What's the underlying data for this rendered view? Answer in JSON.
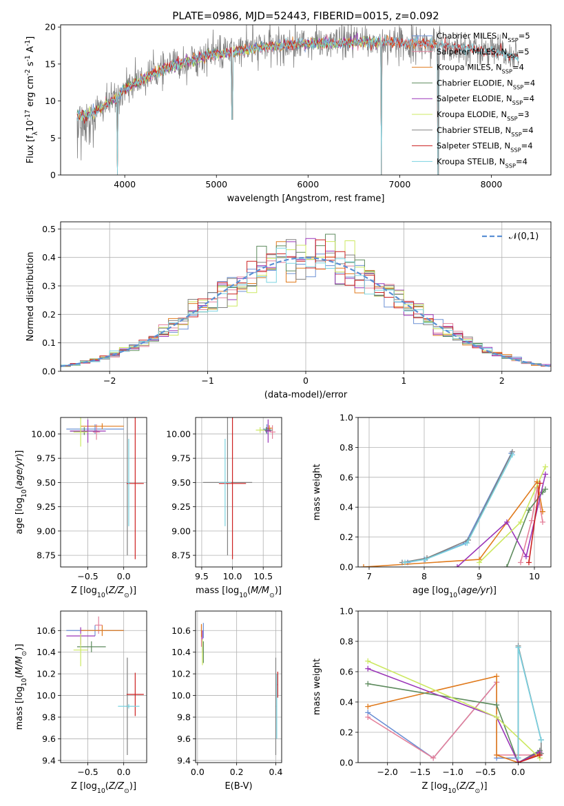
{
  "colors": {
    "chabrier_miles": "#6a8fd4",
    "salpeter_miles": "#e4809a",
    "kroupa_miles": "#e07a1c",
    "chabrier_elodie": "#5c8a5c",
    "salpeter_elodie": "#9a35b8",
    "kroupa_elodie": "#cce860",
    "chabrier_stelib": "#808080",
    "salpeter_stelib": "#cc1f1f",
    "kroupa_stelib": "#7ad3e0"
  },
  "chart_data": [
    {
      "type": "line",
      "title": "PLATE=0986, MJD=52443, FIBERID=0015, z=0.092",
      "xlabel": "wavelength [Angstrom, rest frame]",
      "ylabel": "Flux [f$_\\lambda$10$^{-17}$ erg cm$^{-2}$ s$^{-1}$ A$^{-1}$]",
      "xlim": [
        3300,
        8650
      ],
      "ylim": [
        0,
        20.3
      ],
      "xticks": [
        "4000",
        "5000",
        "6000",
        "7000",
        "8000"
      ],
      "yticks": [
        "0",
        "5",
        "10",
        "15",
        "20"
      ],
      "grid": false,
      "legend_position": "top-right",
      "continuum": {
        "x": [
          3480,
          3600,
          3700,
          3800,
          3900,
          4000,
          4100,
          4300,
          4500,
          4700,
          4900,
          5100,
          5300,
          5500,
          5700,
          5900,
          6100,
          6300,
          6500,
          6700,
          6900,
          7100,
          7300,
          7500,
          7700,
          7900,
          8100,
          8300
        ],
        "y": [
          8.0,
          8.2,
          8.6,
          9.5,
          10.4,
          11.6,
          12.3,
          13.6,
          14.6,
          15.4,
          16.2,
          16.5,
          16.9,
          17.3,
          17.5,
          17.7,
          17.8,
          17.8,
          17.9,
          17.9,
          18.0,
          17.8,
          17.7,
          17.5,
          17.2,
          16.8,
          16.5,
          15.8
        ]
      },
      "spectrum_dips": [
        {
          "x": 3920,
          "y": 0
        },
        {
          "x": 5175,
          "y": 7.5
        },
        {
          "x": 6800,
          "y": 0
        },
        {
          "x": 7420,
          "y": 0
        }
      ],
      "series": [
        {
          "name": "Chabrier MILES, N$_{SSP}$=5",
          "color_key": "chabrier_miles",
          "xmax": 7440
        },
        {
          "name": "Salpeter MILES, N$_{SSP}$=5",
          "color_key": "salpeter_miles",
          "xmax": 7440
        },
        {
          "name": "Kroupa MILES, N$_{SSP}$=4",
          "color_key": "kroupa_miles",
          "xmax": 7440
        },
        {
          "name": "Chabrier ELODIE, N$_{SSP}$=4",
          "color_key": "chabrier_elodie",
          "xmax": 6800
        },
        {
          "name": "Salpeter ELODIE, N$_{SSP}$=4",
          "color_key": "salpeter_elodie",
          "xmax": 6800
        },
        {
          "name": "Kroupa ELODIE, N$_{SSP}$=3",
          "color_key": "kroupa_elodie",
          "xmax": 6800
        },
        {
          "name": "Chabrier STELIB, N$_{SSP}$=4",
          "color_key": "chabrier_stelib",
          "xmax": 8300
        },
        {
          "name": "Salpeter STELIB, N$_{SSP}$=4",
          "color_key": "salpeter_stelib",
          "xmax": 8300
        },
        {
          "name": "Kroupa STELIB, N$_{SSP}$=4",
          "color_key": "kroupa_stelib",
          "xmax": 8300
        }
      ]
    },
    {
      "type": "histogram",
      "xlabel": "(data-model)/error",
      "ylabel": "Normed distribution",
      "xlim": [
        -2.5,
        2.5
      ],
      "ylim": [
        0,
        0.525
      ],
      "xticks": [
        "−2",
        "−1",
        "0",
        "1",
        "2"
      ],
      "yticks": [
        "0.0",
        "0.1",
        "0.2",
        "0.3",
        "0.4",
        "0.5"
      ],
      "grid": true,
      "bin_width": 0.1,
      "reference_curve": {
        "name": "$\\mathcal{N}(0,1)$",
        "color": "#5a8fd4",
        "style": "dashed"
      },
      "legend_position": "top-right"
    },
    {
      "type": "scatter",
      "xlabel": "Z [log$_{10}$($Z/Z_\\odot$)]",
      "ylabel": "age  [log$_{10}$($age/yr$)]",
      "xlim": [
        -0.88,
        0.32
      ],
      "ylim": [
        8.63,
        10.17
      ],
      "xticks": [
        "−0.5",
        "0.0"
      ],
      "yticks": [
        "8.75",
        "9.00",
        "9.25",
        "9.50",
        "9.75",
        "10.00"
      ],
      "grid": true,
      "points": [
        {
          "key": "chabrier_miles",
          "x": -0.4,
          "y": 10.05,
          "xerr": 0.4,
          "yerr": 0.05
        },
        {
          "key": "salpeter_miles",
          "x": -0.38,
          "y": 10.02,
          "xerr": 0.05,
          "yerr": 0.08
        },
        {
          "key": "kroupa_miles",
          "x": -0.3,
          "y": 10.08,
          "xerr": 0.3,
          "yerr": 0.03
        },
        {
          "key": "chabrier_elodie",
          "x": -0.55,
          "y": 10.03,
          "xerr": 0.2,
          "yerr": 0.04
        },
        {
          "key": "salpeter_elodie",
          "x": -0.5,
          "y": 10.03,
          "xerr": 0.25,
          "yerr": 0.12
        },
        {
          "key": "kroupa_elodie",
          "x": -0.6,
          "y": 10.02,
          "xerr": 0.1,
          "yerr": 0.15
        },
        {
          "key": "chabrier_stelib",
          "x": 0.05,
          "y": 9.5,
          "xerr": 0.0,
          "yerr": 0.75
        },
        {
          "key": "salpeter_stelib",
          "x": 0.16,
          "y": 9.49,
          "xerr": 0.12,
          "yerr": 0.78
        },
        {
          "key": "kroupa_stelib",
          "x": 0.07,
          "y": 9.5,
          "xerr": 0.02,
          "yerr": 0.45
        }
      ]
    },
    {
      "type": "scatter",
      "xlabel": "mass [log$_{10}$($M/M_\\odot$)]",
      "ylabel": "",
      "xlim": [
        9.4,
        10.8
      ],
      "ylim": [
        8.63,
        10.17
      ],
      "xticks": [
        "9.5",
        "10.0",
        "10.5"
      ],
      "yticks": [
        "8.75",
        "9.00",
        "9.25",
        "9.50",
        "9.75",
        "10.00"
      ],
      "grid": true,
      "points": [
        {
          "key": "chabrier_miles",
          "x": 10.56,
          "y": 10.05,
          "xerr": 0.06,
          "yerr": 0.05
        },
        {
          "key": "salpeter_miles",
          "x": 10.65,
          "y": 10.02,
          "xerr": 0.05,
          "yerr": 0.07
        },
        {
          "key": "kroupa_miles",
          "x": 10.6,
          "y": 10.06,
          "xerr": 0.05,
          "yerr": 0.03
        },
        {
          "key": "chabrier_elodie",
          "x": 10.55,
          "y": 10.04,
          "xerr": 0.1,
          "yerr": 0.03
        },
        {
          "key": "salpeter_elodie",
          "x": 10.58,
          "y": 10.03,
          "xerr": 0.05,
          "yerr": 0.12
        },
        {
          "key": "kroupa_elodie",
          "x": 10.45,
          "y": 10.04,
          "xerr": 0.07,
          "yerr": 0.03
        },
        {
          "key": "chabrier_stelib",
          "x": 9.92,
          "y": 9.5,
          "xerr": 0.4,
          "yerr": 0.75
        },
        {
          "key": "salpeter_stelib",
          "x": 10.0,
          "y": 9.49,
          "xerr": 0.22,
          "yerr": 0.78
        },
        {
          "key": "kroupa_stelib",
          "x": 9.88,
          "y": 9.5,
          "xerr": 0.1,
          "yerr": 0.45
        }
      ]
    },
    {
      "type": "line",
      "xlabel": "age  [log$_{10}$($age/yr$)]",
      "ylabel": "mass weight",
      "xlim": [
        6.8,
        10.3
      ],
      "ylim": [
        0,
        1
      ],
      "xticks": [
        "7",
        "8",
        "9",
        "10"
      ],
      "yticks": [
        "0.0",
        "0.2",
        "0.4",
        "0.6",
        "0.8",
        "1.0"
      ],
      "grid": true,
      "series": [
        {
          "key": "chabrier_miles",
          "x": [
            7.7,
            8.0,
            8.75,
            9.58
          ],
          "y": [
            0.03,
            0.05,
            0.16,
            0.76
          ]
        },
        {
          "key": "salpeter_miles",
          "x": [
            9.75,
            9.95,
            10.05,
            10.15
          ],
          "y": [
            0.03,
            0.31,
            0.53,
            0.3
          ]
        },
        {
          "key": "kroupa_miles",
          "x": [
            6.9,
            9.0,
            10.05,
            10.15
          ],
          "y": [
            0.0,
            0.05,
            0.57,
            0.37
          ]
        },
        {
          "key": "chabrier_elodie",
          "x": [
            9.5,
            9.9,
            10.15,
            10.2
          ],
          "y": [
            0.0,
            0.38,
            0.5,
            0.52
          ]
        },
        {
          "key": "salpeter_elodie",
          "x": [
            8.6,
            9.5,
            9.85,
            10.2
          ],
          "y": [
            0.0,
            0.3,
            0.07,
            0.62
          ]
        },
        {
          "key": "kroupa_elodie",
          "x": [
            9.0,
            9.75,
            10.2
          ],
          "y": [
            0.03,
            0.3,
            0.67
          ]
        },
        {
          "key": "chabrier_stelib",
          "x": [
            7.6,
            8.05,
            8.8,
            9.6
          ],
          "y": [
            0.03,
            0.06,
            0.18,
            0.77
          ]
        },
        {
          "key": "salpeter_stelib",
          "x": [
            9.9,
            10.1
          ],
          "y": [
            0.03,
            0.56
          ]
        },
        {
          "key": "kroupa_stelib",
          "x": [
            7.65,
            8.02,
            8.78,
            9.6
          ],
          "y": [
            0.03,
            0.05,
            0.16,
            0.75
          ]
        }
      ]
    },
    {
      "type": "scatter",
      "xlabel": "Z [log$_{10}$($Z/Z_\\odot$)]",
      "ylabel": "mass [log$_{10}$($M/M_\\odot$)]",
      "xlim": [
        -0.88,
        0.32
      ],
      "ylim": [
        9.38,
        10.78
      ],
      "xticks": [
        "−0.5",
        "0.0"
      ],
      "yticks": [
        "9.4",
        "9.6",
        "9.8",
        "10.0",
        "10.2",
        "10.4",
        "10.6"
      ],
      "grid": true,
      "points": [
        {
          "key": "chabrier_miles",
          "x": -0.4,
          "y": 10.6,
          "xerr": 0.4,
          "yerr": 0.05
        },
        {
          "key": "salpeter_miles",
          "x": -0.35,
          "y": 10.65,
          "xerr": 0.05,
          "yerr": 0.08
        },
        {
          "key": "kroupa_miles",
          "x": -0.3,
          "y": 10.6,
          "xerr": 0.3,
          "yerr": 0.05
        },
        {
          "key": "chabrier_elodie",
          "x": -0.45,
          "y": 10.45,
          "xerr": 0.2,
          "yerr": 0.05
        },
        {
          "key": "salpeter_elodie",
          "x": -0.6,
          "y": 10.55,
          "xerr": 0.2,
          "yerr": 0.08
        },
        {
          "key": "kroupa_elodie",
          "x": -0.6,
          "y": 10.42,
          "xerr": 0.1,
          "yerr": 0.15
        },
        {
          "key": "chabrier_stelib",
          "x": 0.05,
          "y": 9.9,
          "xerr": 0.02,
          "yerr": 0.45
        },
        {
          "key": "salpeter_stelib",
          "x": 0.16,
          "y": 10.01,
          "xerr": 0.12,
          "yerr": 0.2
        },
        {
          "key": "kroupa_stelib",
          "x": 0.07,
          "y": 9.9,
          "xerr": 0.15,
          "yerr": 0.02
        }
      ]
    },
    {
      "type": "scatter",
      "xlabel": "E(B-V)",
      "ylabel": "",
      "xlim": [
        -0.01,
        0.43
      ],
      "ylim": [
        9.38,
        10.78
      ],
      "xticks": [
        "0.0",
        "0.2",
        "0.4"
      ],
      "yticks": [
        "9.4",
        "9.6",
        "9.8",
        "10.0",
        "10.2",
        "10.4",
        "10.6"
      ],
      "grid": true,
      "points": [
        {
          "key": "chabrier_miles",
          "x": 0.03,
          "y": 10.6,
          "xerr": 0.002,
          "yerr": 0.07
        },
        {
          "key": "salpeter_miles",
          "x": 0.02,
          "y": 10.55,
          "xerr": 0.002,
          "yerr": 0.1
        },
        {
          "key": "kroupa_miles",
          "x": 0.02,
          "y": 10.6,
          "xerr": 0.002,
          "yerr": 0.06
        },
        {
          "key": "chabrier_elodie",
          "x": 0.03,
          "y": 10.4,
          "xerr": 0.002,
          "yerr": 0.1
        },
        {
          "key": "salpeter_elodie",
          "x": 0.025,
          "y": 10.5,
          "xerr": 0.002,
          "yerr": 0.1
        },
        {
          "key": "kroupa_elodie",
          "x": 0.025,
          "y": 10.4,
          "xerr": 0.002,
          "yerr": 0.12
        },
        {
          "key": "chabrier_stelib",
          "x": 0.4,
          "y": 9.9,
          "xerr": 0.002,
          "yerr": 0.45
        },
        {
          "key": "salpeter_stelib",
          "x": 0.41,
          "y": 10.1,
          "xerr": 0.002,
          "yerr": 0.12
        },
        {
          "key": "kroupa_stelib",
          "x": 0.405,
          "y": 9.9,
          "xerr": 0.002,
          "yerr": 0.3
        }
      ]
    },
    {
      "type": "line",
      "xlabel": "Z [log$_{10}$($Z/Z_\\odot$)]",
      "ylabel": "mass weight",
      "xlim": [
        -2.45,
        0.5
      ],
      "ylim": [
        0,
        1
      ],
      "xticks": [
        "−2.0",
        "−1.5",
        "−1.0",
        "−0.5",
        "0.0"
      ],
      "yticks": [
        "0.0",
        "0.2",
        "0.4",
        "0.6",
        "0.8",
        "1.0"
      ],
      "grid": true,
      "series": [
        {
          "key": "chabrier_miles",
          "x": [
            -2.3,
            -1.3,
            -0.33,
            -0.33,
            0.0,
            0.0,
            0.35
          ],
          "y": [
            0.33,
            0.03,
            0.53,
            0.03,
            0.03,
            0.76,
            0.15
          ]
        },
        {
          "key": "salpeter_miles",
          "x": [
            -2.3,
            -1.3,
            -0.33,
            -0.33,
            0.0,
            0.33
          ],
          "y": [
            0.3,
            0.03,
            0.53,
            0.05,
            0.05,
            0.05
          ]
        },
        {
          "key": "kroupa_miles",
          "x": [
            -2.3,
            -0.33,
            -0.33,
            0.0,
            0.33
          ],
          "y": [
            0.37,
            0.57,
            0.05,
            0.0,
            0.06
          ]
        },
        {
          "key": "chabrier_elodie",
          "x": [
            -2.3,
            -0.33,
            0.0,
            0.33
          ],
          "y": [
            0.52,
            0.38,
            0.0,
            0.08
          ]
        },
        {
          "key": "salpeter_elodie",
          "x": [
            -2.3,
            -0.33,
            0.0,
            0.33
          ],
          "y": [
            0.62,
            0.3,
            0.0,
            0.07
          ]
        },
        {
          "key": "kroupa_elodie",
          "x": [
            -2.3,
            -0.33,
            0.33
          ],
          "y": [
            0.67,
            0.3,
            0.03
          ]
        },
        {
          "key": "chabrier_stelib",
          "x": [
            0.0,
            0.0,
            0.35,
            0.35
          ],
          "y": [
            0.03,
            0.77,
            0.15,
            0.06
          ]
        },
        {
          "key": "salpeter_stelib",
          "x": [
            0.0,
            0.33
          ],
          "y": [
            0.0,
            0.05
          ]
        },
        {
          "key": "kroupa_stelib",
          "x": [
            0.0,
            0.0,
            0.35
          ],
          "y": [
            0.03,
            0.76,
            0.15
          ]
        }
      ]
    }
  ]
}
